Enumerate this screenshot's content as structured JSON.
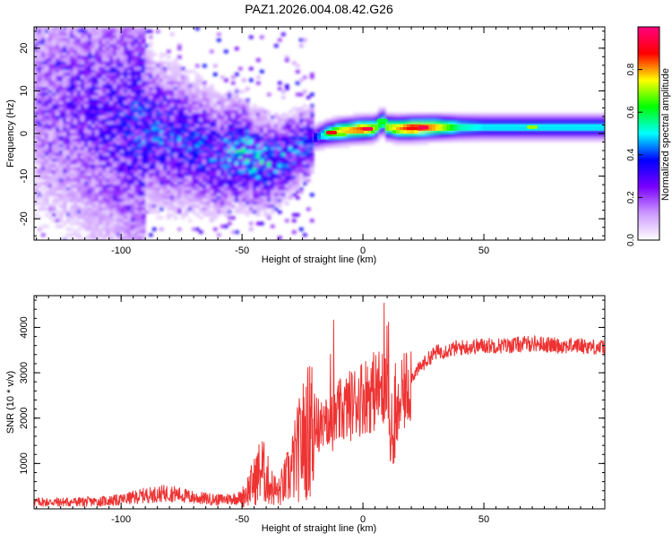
{
  "title": "PAZ1.2026.004.08.42.G26",
  "chart_data": [
    {
      "type": "heatmap",
      "title": "PAZ1.2026.004.08.42.G26",
      "xlabel": "Height of straight line (km)",
      "ylabel": "Frequency (Hz)",
      "xlim": [
        -136,
        100
      ],
      "ylim": [
        -25,
        25
      ],
      "xticks": [
        -100,
        -50,
        0,
        50
      ],
      "yticks": [
        -20,
        -10,
        0,
        10,
        20
      ],
      "xtick_labels": [
        "-100",
        "-50",
        "0",
        "50"
      ],
      "ytick_labels": [
        "-20",
        "-10",
        "0",
        "10",
        "20"
      ],
      "colorbar": {
        "label": "Normalized spectral amplitude",
        "range": [
          0,
          1
        ],
        "ticks": [
          0.0,
          0.2,
          0.4,
          0.6,
          0.8
        ],
        "tick_labels": [
          "0.0",
          "0.2",
          "0.4",
          "0.6",
          "0.8"
        ],
        "colors": [
          "#ffffff",
          "#cc99ff",
          "#7a00ff",
          "#0000ff",
          "#00ffff",
          "#00ff00",
          "#ffff00",
          "#ff0000",
          "#ff0080"
        ]
      },
      "ridge": {
        "height_km": [
          -136,
          -120,
          -110,
          -100,
          -90,
          -80,
          -70,
          -60,
          -50,
          -45,
          -40,
          -35,
          -30,
          -25,
          -20,
          -15,
          -10,
          -5,
          0,
          5,
          8,
          10,
          15,
          20,
          30,
          40,
          50,
          60,
          70,
          80,
          90,
          100
        ],
        "frequency_hz": [
          9,
          7,
          5,
          3,
          1.5,
          -1,
          -3,
          -5,
          -4,
          -6,
          -7,
          -6,
          -5,
          -3,
          -1,
          0,
          0.5,
          0.8,
          1,
          1.2,
          3,
          1.5,
          1.2,
          1.3,
          1.5,
          1.5,
          1.5,
          1.5,
          1.5,
          1.5,
          1.5,
          1.5
        ],
        "amplitude": [
          0.15,
          0.2,
          0.25,
          0.3,
          0.35,
          0.35,
          0.35,
          0.35,
          0.45,
          0.45,
          0.45,
          0.4,
          0.4,
          0.35,
          0.35,
          0.6,
          0.75,
          0.8,
          0.85,
          0.7,
          0.6,
          0.7,
          0.8,
          0.9,
          0.8,
          0.55,
          0.5,
          0.5,
          0.5,
          0.5,
          0.5,
          0.5
        ]
      }
    },
    {
      "type": "line",
      "xlabel": "Height of straight line (km)",
      "ylabel": "SNR (10 * v/v)",
      "xlim": [
        -136,
        100
      ],
      "ylim": [
        0,
        4700
      ],
      "xticks": [
        -100,
        -50,
        0,
        50
      ],
      "yticks": [
        1000,
        2000,
        3000,
        4000
      ],
      "xtick_labels": [
        "-100",
        "-50",
        "0",
        "50"
      ],
      "ytick_labels": [
        "1000",
        "2000",
        "3000",
        "4000"
      ],
      "color": "#ee3333",
      "series": [
        {
          "name": "SNR",
          "x": [
            -136,
            -120,
            -110,
            -100,
            -90,
            -80,
            -70,
            -60,
            -50,
            -45,
            -42,
            -38,
            -35,
            -30,
            -25,
            -20,
            -15,
            -12,
            -10,
            -5,
            0,
            5,
            10,
            12,
            15,
            20,
            25,
            30,
            40,
            50,
            60,
            70,
            80,
            90,
            100
          ],
          "y": [
            150,
            150,
            160,
            200,
            300,
            350,
            250,
            200,
            250,
            600,
            900,
            500,
            350,
            800,
            1500,
            1900,
            1700,
            1900,
            2100,
            2300,
            2500,
            2600,
            2700,
            1000,
            2300,
            2900,
            3200,
            3450,
            3550,
            3600,
            3600,
            3650,
            3600,
            3600,
            3550
          ]
        }
      ]
    }
  ]
}
